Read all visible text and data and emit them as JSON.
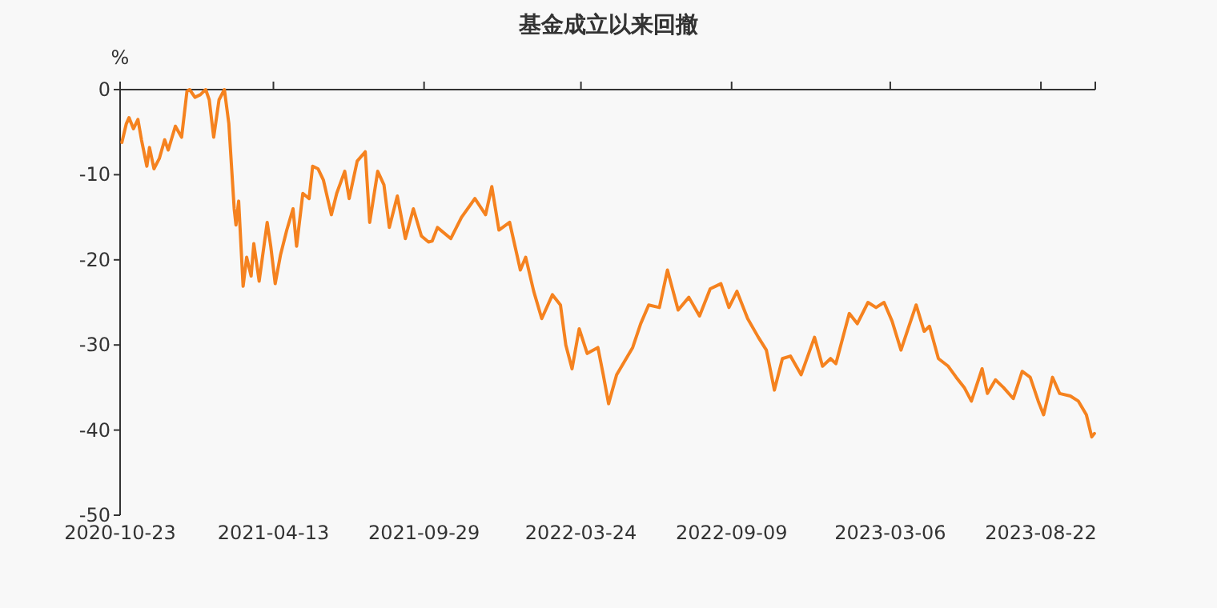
{
  "chart_data": {
    "type": "line",
    "title": "基金成立以来回撤",
    "ylabel": "%",
    "xlim": [
      "2020-10-23",
      "2023-10-22"
    ],
    "ylim": [
      -50,
      0
    ],
    "xticks": [
      "2020-10-23",
      "2021-04-13",
      "2021-09-29",
      "2022-03-24",
      "2022-09-09",
      "2023-03-06",
      "2023-08-22"
    ],
    "yticks": [
      -50,
      -40,
      -30,
      -20,
      -10,
      0
    ],
    "x": [
      "2020-10-25",
      "2020-10-30",
      "2020-11-02",
      "2020-11-07",
      "2020-11-12",
      "2020-11-16",
      "2020-11-22",
      "2020-11-25",
      "2020-11-30",
      "2020-12-06",
      "2020-12-12",
      "2020-12-16",
      "2020-12-24",
      "2020-12-31",
      "2021-01-06",
      "2021-01-09",
      "2021-01-15",
      "2021-01-21",
      "2021-01-27",
      "2021-01-31",
      "2021-02-05",
      "2021-02-11",
      "2021-02-17",
      "2021-02-22",
      "2021-02-28",
      "2021-03-02",
      "2021-03-05",
      "2021-03-10",
      "2021-03-14",
      "2021-03-19",
      "2021-03-22",
      "2021-03-28",
      "2021-04-06",
      "2021-04-10",
      "2021-04-15",
      "2021-04-21",
      "2021-04-28",
      "2021-05-05",
      "2021-05-09",
      "2021-05-16",
      "2021-05-23",
      "2021-05-27",
      "2021-06-02",
      "2021-06-08",
      "2021-06-17",
      "2021-06-23",
      "2021-07-02",
      "2021-07-07",
      "2021-07-16",
      "2021-07-25",
      "2021-07-30",
      "2021-08-08",
      "2021-08-15",
      "2021-08-21",
      "2021-08-30",
      "2021-09-08",
      "2021-09-17",
      "2021-09-26",
      "2021-10-04",
      "2021-10-08",
      "2021-10-14",
      "2021-10-29",
      "2021-11-10",
      "2021-11-25",
      "2021-12-07",
      "2021-12-14",
      "2021-12-22",
      "2022-01-03",
      "2022-01-15",
      "2022-01-21",
      "2022-01-30",
      "2022-02-08",
      "2022-02-20",
      "2022-03-01",
      "2022-03-07",
      "2022-03-14",
      "2022-03-22",
      "2022-03-31",
      "2022-04-12",
      "2022-04-18",
      "2022-04-24",
      "2022-05-03",
      "2022-05-12",
      "2022-05-21",
      "2022-05-30",
      "2022-06-08",
      "2022-06-20",
      "2022-06-29",
      "2022-07-11",
      "2022-07-23",
      "2022-08-04",
      "2022-08-16",
      "2022-08-28",
      "2022-09-06",
      "2022-09-15",
      "2022-09-27",
      "2022-10-09",
      "2022-10-18",
      "2022-10-27",
      "2022-11-05",
      "2022-11-14",
      "2022-11-26",
      "2022-12-11",
      "2022-12-20",
      "2022-12-29",
      "2023-01-04",
      "2023-01-19",
      "2023-01-28",
      "2023-02-09",
      "2023-02-18",
      "2023-02-27",
      "2023-03-08",
      "2023-03-18",
      "2023-03-26",
      "2023-04-04",
      "2023-04-13",
      "2023-04-19",
      "2023-04-29",
      "2023-05-10",
      "2023-05-19",
      "2023-05-28",
      "2023-06-05",
      "2023-06-17",
      "2023-06-23",
      "2023-07-02",
      "2023-07-11",
      "2023-07-22",
      "2023-08-01",
      "2023-08-10",
      "2023-08-19",
      "2023-08-25",
      "2023-09-04",
      "2023-09-12",
      "2023-09-24",
      "2023-10-03",
      "2023-10-12",
      "2023-10-18",
      "2023-10-21"
    ],
    "series": [
      {
        "color": "#f5821f",
        "values": [
          -6.2,
          -4.0,
          -3.3,
          -4.6,
          -3.5,
          -5.9,
          -9.0,
          -6.8,
          -9.3,
          -8.1,
          -5.9,
          -7.1,
          -4.3,
          -5.6,
          -0.2,
          0,
          -0.9,
          -0.6,
          0,
          -1.2,
          -5.6,
          -1.2,
          0,
          -4.0,
          -14.0,
          -15.9,
          -13.1,
          -23.1,
          -19.7,
          -21.9,
          -18.1,
          -22.5,
          -15.6,
          -18.4,
          -22.8,
          -19.4,
          -16.5,
          -14.0,
          -18.4,
          -12.2,
          -12.8,
          -9.0,
          -9.3,
          -10.6,
          -14.7,
          -12.2,
          -9.6,
          -12.8,
          -8.4,
          -7.3,
          -15.6,
          -9.6,
          -11.2,
          -16.2,
          -12.5,
          -17.5,
          -14.0,
          -17.2,
          -17.9,
          -17.8,
          -16.2,
          -17.5,
          -15.0,
          -12.8,
          -14.7,
          -11.4,
          -16.5,
          -15.6,
          -21.2,
          -19.7,
          -23.7,
          -26.9,
          -24.1,
          -25.3,
          -30.0,
          -32.8,
          -28.1,
          -31.0,
          -30.3,
          -33.5,
          -36.9,
          -33.5,
          -31.9,
          -30.3,
          -27.5,
          -25.3,
          -25.6,
          -21.2,
          -25.9,
          -24.4,
          -26.6,
          -23.4,
          -22.8,
          -25.6,
          -23.7,
          -26.9,
          -29.1,
          -30.6,
          -35.3,
          -31.6,
          -31.3,
          -33.5,
          -29.1,
          -32.5,
          -31.6,
          -32.2,
          -26.3,
          -27.5,
          -25.0,
          -25.6,
          -25.0,
          -27.2,
          -30.6,
          -28.1,
          -25.3,
          -28.4,
          -27.8,
          -31.6,
          -32.5,
          -33.8,
          -35.0,
          -36.6,
          -32.8,
          -35.7,
          -34.1,
          -35.0,
          -36.3,
          -33.1,
          -33.8,
          -36.6,
          -38.2,
          -33.8,
          -35.7,
          -36.0,
          -36.6,
          -38.2,
          -40.8,
          -40.4
        ]
      }
    ]
  }
}
